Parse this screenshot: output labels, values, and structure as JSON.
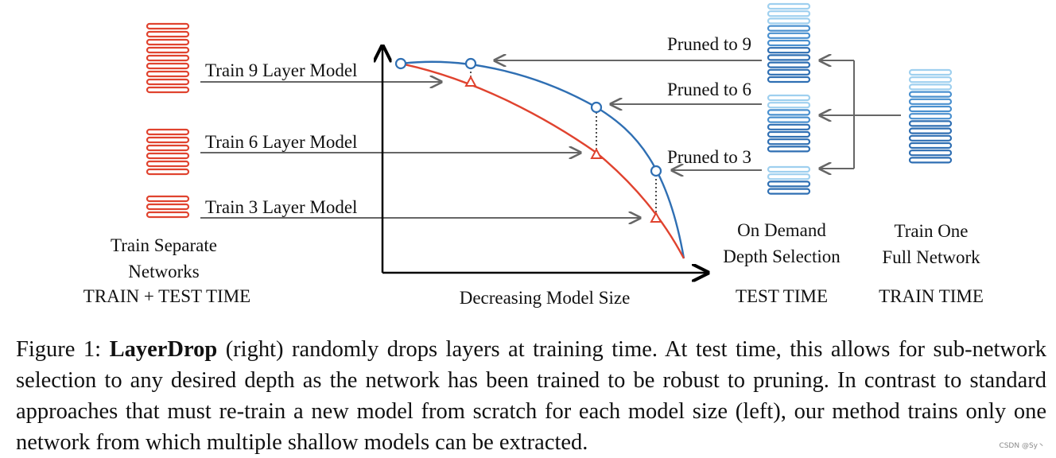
{
  "colors": {
    "red": "#e0432f",
    "blue": "#2f6fb3",
    "blue_light": "#9fd0ef",
    "blue_mid": "#4a90cf",
    "arrow": "#666666",
    "axis": "#000000"
  },
  "left": {
    "arrows": [
      "Train 9 Layer Model",
      "Train 6 Layer Model",
      "Train 3 Layer Model"
    ],
    "title": "Train Separate\nNetworks",
    "time": "TRAIN + TEST TIME",
    "stacks": [
      9,
      6,
      3
    ]
  },
  "axis": {
    "xlabel": "Decreasing Model Size"
  },
  "middle": {
    "arrows": [
      "Pruned to 9",
      "Pruned to 6",
      "Pruned to 3"
    ],
    "title": "On Demand\nDepth Selection",
    "time": "TEST TIME"
  },
  "right": {
    "title": "Train One\nFull Network",
    "time": "TRAIN TIME"
  },
  "caption": {
    "prefix": "Figure 1: ",
    "bold": "LayerDrop",
    "text": " (right) randomly drops layers at training time.  At test time, this allows for sub-network selection to any desired depth as the network has been trained to be robust to pruning. In contrast to standard approaches that must re-train a new model from scratch for each model size (left), our method trains only one network from which multiple shallow models can be extracted."
  },
  "watermark": "CSDN @Sy丶"
}
